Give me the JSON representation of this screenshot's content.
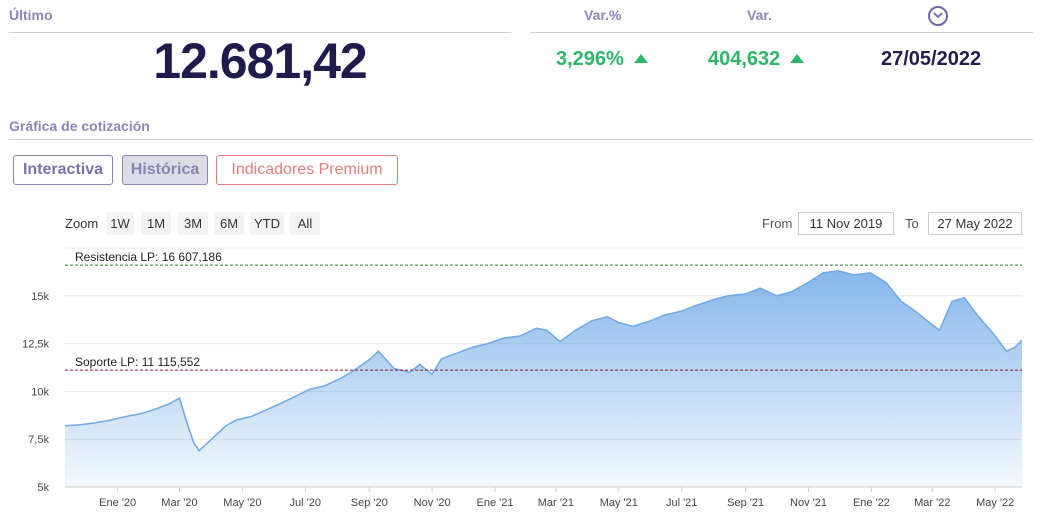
{
  "quote": {
    "last_label": "Último",
    "last_value": "12.681,42",
    "var_pct_label": "Var.%",
    "var_pct_value": "3,296%",
    "var_abs_label": "Var.",
    "var_abs_value": "404,632",
    "date_value": "27/05/2022"
  },
  "section_title": "Gráfica de cotización",
  "tabs": [
    {
      "label": "Interactiva"
    },
    {
      "label": "Histórica",
      "active": true
    },
    {
      "label": "Indicadores Premium"
    }
  ],
  "range_selector": {
    "zoom_label": "Zoom",
    "buttons": [
      "1W",
      "1M",
      "3M",
      "6M",
      "YTD",
      "All"
    ],
    "from_label": "From",
    "from_value": "11 Nov 2019",
    "to_label": "To",
    "to_value": "27 May 2022"
  },
  "colors": {
    "accent_purple": "#8c85b5",
    "up_green": "#2fb46a",
    "premium_red": "#e07e7e",
    "area_fill": "#7fb2ea",
    "resistance_line": "#2f6e2f",
    "support_line": "#8b1a2a"
  },
  "chart_data": {
    "type": "area",
    "y_tick_labels": [
      "5k",
      "7,5k",
      "10k",
      "12,5k",
      "15k"
    ],
    "y_ticks": [
      5000,
      7500,
      10000,
      12500,
      15000
    ],
    "ylim": [
      5000,
      17500
    ],
    "x_tick_labels": [
      "Ene '20",
      "Mar '20",
      "May '20",
      "Jul '20",
      "Sep '20",
      "Nov '20",
      "Ene '21",
      "Mar '21",
      "May '21",
      "Jul '21",
      "Sep '21",
      "Nov '21",
      "Ene '22",
      "Mar '22",
      "May '22"
    ],
    "x_tick_dates": [
      "2020-01-01",
      "2020-03-01",
      "2020-05-01",
      "2020-07-01",
      "2020-09-01",
      "2020-11-01",
      "2021-01-01",
      "2021-03-01",
      "2021-05-01",
      "2021-07-01",
      "2021-09-01",
      "2021-11-01",
      "2022-01-01",
      "2022-03-01",
      "2022-05-01"
    ],
    "xlim": [
      "2019-11-11",
      "2022-05-27"
    ],
    "reference_lines": [
      {
        "label": "Resistencia LP: 16 607,186",
        "value": 16607.186
      },
      {
        "label": "Soporte LP: 11 115,552",
        "value": 11115.552
      }
    ],
    "series": [
      {
        "x": [
          "2019-11-11",
          "2019-11-25",
          "2019-12-10",
          "2019-12-25",
          "2020-01-10",
          "2020-01-25",
          "2020-02-08",
          "2020-02-20",
          "2020-03-01",
          "2020-03-08",
          "2020-03-15",
          "2020-03-20",
          "2020-03-27",
          "2020-04-05",
          "2020-04-15",
          "2020-04-25",
          "2020-05-10",
          "2020-05-25",
          "2020-06-08",
          "2020-06-20",
          "2020-07-05",
          "2020-07-20",
          "2020-08-05",
          "2020-08-20",
          "2020-09-02",
          "2020-09-10",
          "2020-09-25",
          "2020-10-10",
          "2020-10-20",
          "2020-11-01",
          "2020-11-10",
          "2020-11-25",
          "2020-12-10",
          "2020-12-25",
          "2021-01-10",
          "2021-01-25",
          "2021-02-10",
          "2021-02-20",
          "2021-03-05",
          "2021-03-20",
          "2021-04-05",
          "2021-04-20",
          "2021-05-01",
          "2021-05-15",
          "2021-06-01",
          "2021-06-15",
          "2021-07-01",
          "2021-07-15",
          "2021-08-01",
          "2021-08-15",
          "2021-09-01",
          "2021-09-15",
          "2021-10-01",
          "2021-10-15",
          "2021-11-01",
          "2021-11-15",
          "2021-11-30",
          "2021-12-15",
          "2021-12-31",
          "2022-01-15",
          "2022-01-30",
          "2022-02-10",
          "2022-02-24",
          "2022-03-08",
          "2022-03-20",
          "2022-04-01",
          "2022-04-15",
          "2022-05-01",
          "2022-05-12",
          "2022-05-20",
          "2022-05-27"
        ],
        "values": [
          8200,
          8250,
          8350,
          8500,
          8700,
          8850,
          9100,
          9350,
          9650,
          8400,
          7300,
          6900,
          7250,
          7700,
          8200,
          8500,
          8700,
          9050,
          9400,
          9700,
          10100,
          10300,
          10700,
          11200,
          11700,
          12100,
          11200,
          11000,
          11400,
          10900,
          11700,
          12000,
          12300,
          12500,
          12800,
          12900,
          13300,
          13200,
          12600,
          13200,
          13700,
          13900,
          13600,
          13400,
          13700,
          14000,
          14200,
          14500,
          14800,
          15000,
          15100,
          15400,
          15000,
          15200,
          15700,
          16200,
          16300,
          16100,
          16200,
          15700,
          14700,
          14300,
          13700,
          13200,
          14700,
          14900,
          13900,
          12900,
          12100,
          12300,
          12681.42
        ]
      }
    ]
  }
}
